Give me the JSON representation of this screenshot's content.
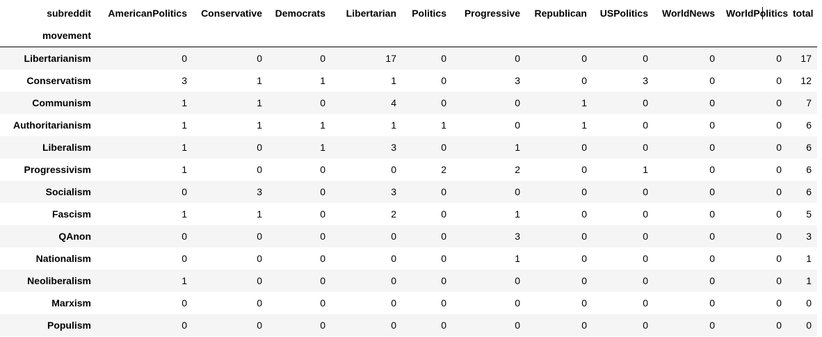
{
  "table": {
    "columns_label": "subreddit",
    "index_label": "movement",
    "columns": [
      "AmericanPolitics",
      "Conservative",
      "Democrats",
      "Libertarian",
      "Politics",
      "Progressive",
      "Republican",
      "USPolitics",
      "WorldNews",
      "WorldPolitics",
      "total"
    ],
    "rows": [
      {
        "label": "Libertarianism",
        "values": [
          "0",
          "0",
          "0",
          "17",
          "0",
          "0",
          "0",
          "0",
          "0",
          "0",
          "17"
        ]
      },
      {
        "label": "Conservatism",
        "values": [
          "3",
          "1",
          "1",
          "1",
          "0",
          "3",
          "0",
          "3",
          "0",
          "0",
          "12"
        ]
      },
      {
        "label": "Communism",
        "values": [
          "1",
          "1",
          "0",
          "4",
          "0",
          "0",
          "1",
          "0",
          "0",
          "0",
          "7"
        ]
      },
      {
        "label": "Authoritarianism",
        "values": [
          "1",
          "1",
          "1",
          "1",
          "1",
          "0",
          "1",
          "0",
          "0",
          "0",
          "6"
        ]
      },
      {
        "label": "Liberalism",
        "values": [
          "1",
          "0",
          "1",
          "3",
          "0",
          "1",
          "0",
          "0",
          "0",
          "0",
          "6"
        ]
      },
      {
        "label": "Progressivism",
        "values": [
          "1",
          "0",
          "0",
          "0",
          "2",
          "2",
          "0",
          "1",
          "0",
          "0",
          "6"
        ]
      },
      {
        "label": "Socialism",
        "values": [
          "0",
          "3",
          "0",
          "3",
          "0",
          "0",
          "0",
          "0",
          "0",
          "0",
          "6"
        ]
      },
      {
        "label": "Fascism",
        "values": [
          "1",
          "1",
          "0",
          "2",
          "0",
          "1",
          "0",
          "0",
          "0",
          "0",
          "5"
        ]
      },
      {
        "label": "QAnon",
        "values": [
          "0",
          "0",
          "0",
          "0",
          "0",
          "3",
          "0",
          "0",
          "0",
          "0",
          "3"
        ]
      },
      {
        "label": "Nationalism",
        "values": [
          "0",
          "0",
          "0",
          "0",
          "0",
          "1",
          "0",
          "0",
          "0",
          "0",
          "1"
        ]
      },
      {
        "label": "Neoliberalism",
        "values": [
          "1",
          "0",
          "0",
          "0",
          "0",
          "0",
          "0",
          "0",
          "0",
          "0",
          "1"
        ]
      },
      {
        "label": "Marxism",
        "values": [
          "0",
          "0",
          "0",
          "0",
          "0",
          "0",
          "0",
          "0",
          "0",
          "0",
          "0"
        ]
      },
      {
        "label": "Populism",
        "values": [
          "0",
          "0",
          "0",
          "0",
          "0",
          "0",
          "0",
          "0",
          "0",
          "0",
          "0"
        ]
      }
    ]
  }
}
